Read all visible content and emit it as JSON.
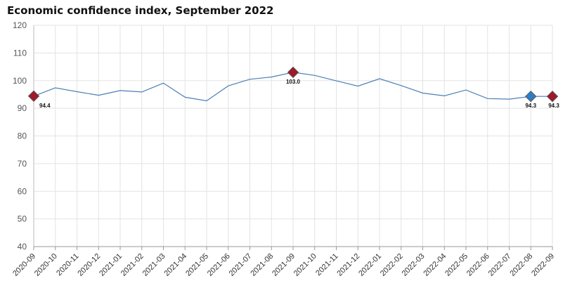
{
  "chart_data": {
    "type": "line",
    "title": "Economic confidence index, September 2022",
    "xlabel": "",
    "ylabel": "",
    "ylim": [
      40,
      120
    ],
    "yticks": [
      40,
      50,
      60,
      70,
      80,
      90,
      100,
      110,
      120
    ],
    "grid": true,
    "x": [
      "2020-09",
      "2020-10",
      "2020-11",
      "2020-12",
      "2021-01",
      "2021-02",
      "2021-03",
      "2021-04",
      "2021-05",
      "2021-06",
      "2021-07",
      "2021-08",
      "2021-09",
      "2021-10",
      "2021-11",
      "2021-12",
      "2022-01",
      "2022-02",
      "2022-03",
      "2022-04",
      "2022-05",
      "2022-06",
      "2022-07",
      "2022-08",
      "2022-09"
    ],
    "series": [
      {
        "name": "",
        "color": "#4a7fb5",
        "values": [
          94.4,
          97.4,
          96.0,
          94.7,
          96.4,
          95.9,
          99.1,
          94.0,
          92.7,
          98.1,
          100.5,
          101.3,
          103.0,
          101.9,
          99.9,
          98.0,
          100.7,
          98.2,
          95.5,
          94.5,
          96.6,
          93.5,
          93.3,
          94.3,
          94.3
        ]
      }
    ],
    "markers": [
      {
        "index": 0,
        "label": "94.4",
        "color": "#a0182a",
        "label_pos": "below-right"
      },
      {
        "index": 12,
        "label": "103.0",
        "color": "#a0182a",
        "label_pos": "below"
      },
      {
        "index": 23,
        "label": "94.3",
        "color": "#2e7ec6",
        "label_pos": "below"
      },
      {
        "index": 24,
        "label": "94.3",
        "color": "#a0182a",
        "label_pos": "below-left"
      }
    ]
  }
}
